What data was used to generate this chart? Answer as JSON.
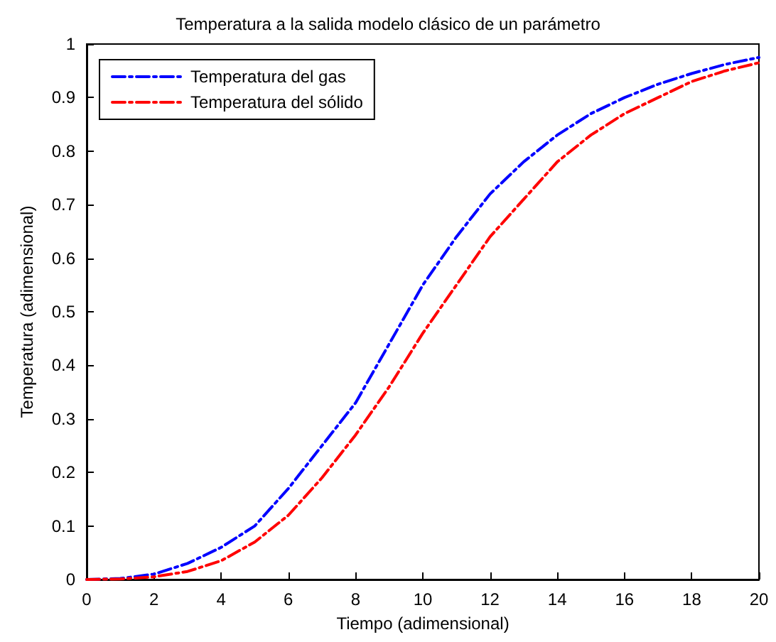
{
  "chart_data": {
    "type": "line",
    "title": "Temperatura a la salida modelo clásico de un parámetro",
    "xlabel": "Tiempo (adimensional)",
    "ylabel": "Temperatura (adimensional)",
    "x": [
      0,
      1,
      2,
      3,
      4,
      5,
      6,
      7,
      8,
      9,
      10,
      11,
      12,
      13,
      14,
      15,
      16,
      17,
      18,
      19,
      20
    ],
    "series": [
      {
        "name": "Temperatura del gas",
        "color": "#0000ff",
        "values": [
          0,
          0.002,
          0.01,
          0.03,
          0.06,
          0.1,
          0.17,
          0.25,
          0.33,
          0.44,
          0.55,
          0.64,
          0.72,
          0.78,
          0.83,
          0.87,
          0.9,
          0.925,
          0.945,
          0.962,
          0.975
        ]
      },
      {
        "name": "Temperatura del sólido",
        "color": "#ff0000",
        "values": [
          0,
          0.001,
          0.005,
          0.015,
          0.035,
          0.07,
          0.12,
          0.19,
          0.27,
          0.36,
          0.46,
          0.55,
          0.64,
          0.71,
          0.78,
          0.83,
          0.87,
          0.9,
          0.93,
          0.95,
          0.965
        ]
      }
    ],
    "xlim": [
      0,
      20
    ],
    "xticks": [
      0,
      2,
      4,
      6,
      8,
      10,
      12,
      14,
      16,
      18,
      20
    ],
    "ylim": [
      0,
      1
    ],
    "yticks": [
      0,
      0.1,
      0.2,
      0.3,
      0.4,
      0.5,
      0.6,
      0.7,
      0.8,
      0.9,
      1
    ],
    "grid": false,
    "legend": "top left",
    "line_style": "dashdot",
    "marker": "none"
  }
}
